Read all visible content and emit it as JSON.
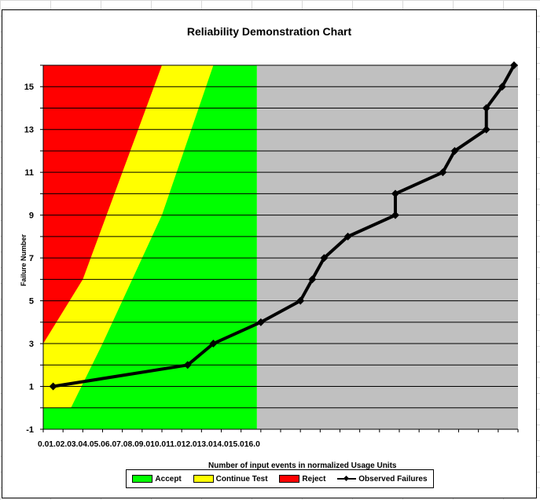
{
  "chart_data": {
    "type": "line",
    "title": "Reliability Demonstration Chart",
    "xlabel": "Number of input events in normalized Usage Units",
    "ylabel": "Failure Number",
    "xlim": [
      0,
      12
    ],
    "ylim": [
      -1,
      16
    ],
    "y_ticks": [
      -1,
      1,
      3,
      5,
      7,
      9,
      11,
      13,
      15
    ],
    "x_tick_labels": [
      "0.0",
      "1.0",
      "2.0",
      "3.0",
      "4.0",
      "5.0",
      "6.0",
      "7.0",
      "8.0",
      "9.0",
      "10.0",
      "11.0",
      "12.0",
      "13.0",
      "14.0",
      "15.0",
      "16.0"
    ],
    "x_tick_label_text": "0.01.02.03.04.05.06.07.08.09.010.011.012.013.014.015.016.0",
    "grid": "horizontal",
    "regions": [
      {
        "name": "Reject",
        "color": "#ff0000",
        "boundary": [
          [
            0,
            3
          ],
          [
            1.0,
            6
          ],
          [
            3.0,
            16
          ]
        ]
      },
      {
        "name": "Continue Test",
        "color": "#ffff00",
        "boundary": [
          [
            0,
            0
          ],
          [
            0.7,
            0
          ],
          [
            1.5,
            3
          ],
          [
            2.0,
            5
          ],
          [
            3.0,
            9
          ],
          [
            4.3,
            16
          ]
        ]
      },
      {
        "name": "Accept",
        "color": "#00ff00",
        "boundary": [
          [
            0,
            -1
          ],
          [
            5.4,
            -1
          ],
          [
            5.4,
            16
          ]
        ]
      }
    ],
    "beyond_region_color": "#c0c0c0",
    "series": [
      {
        "name": "Observed Failures",
        "color": "#000000",
        "x": [
          0.25,
          3.65,
          4.3,
          5.5,
          6.5,
          6.8,
          7.1,
          7.7,
          8.9,
          8.9,
          10.1,
          10.4,
          11.2,
          11.2,
          11.6,
          11.9
        ],
        "y": [
          1,
          2,
          3,
          4,
          5,
          6,
          7,
          8,
          9,
          10,
          11,
          12,
          13,
          14,
          15,
          16
        ]
      }
    ]
  },
  "legend": {
    "accept": "Accept",
    "continue": "Continue Test",
    "reject": "Reject",
    "observed": "Observed Failures"
  },
  "colors": {
    "accept": "#00ff00",
    "continue": "#ffff00",
    "reject": "#ff0000",
    "observed": "#000000",
    "beyond": "#c0c0c0"
  }
}
